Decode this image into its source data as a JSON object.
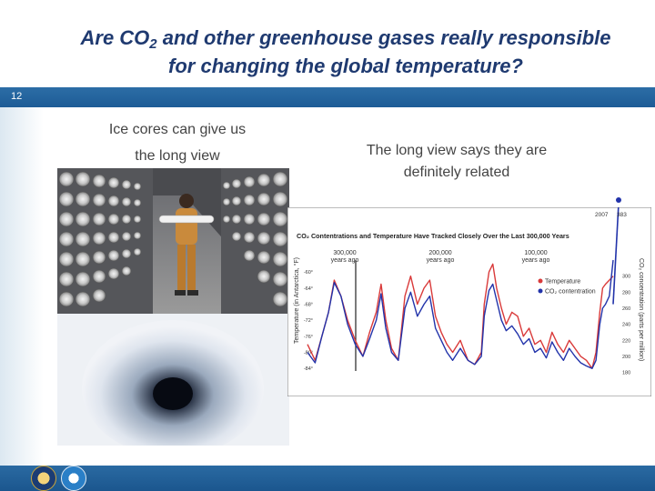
{
  "slide": {
    "title_part1": "Are CO",
    "title_sub": "2",
    "title_part2": " and other greenhouse gases really responsible",
    "title_line2": "for changing the global temperature?",
    "number": "12"
  },
  "left_caption": {
    "line1": "Ice cores can give us",
    "line2": "the long view"
  },
  "right_caption": {
    "line1": "The long view says they are",
    "line2": "definitely related"
  },
  "chart_data": {
    "type": "line",
    "title": "CO₂ Contentrations and Temperature Have Tracked Closely Over the Last 300,000 Years",
    "ylabel_left": "Temperature (in Antarctica, °F)",
    "ylabel_right": "CO₂ concentration (parts per million)",
    "x_markers": [
      {
        "label": "300,000",
        "sublabel": "years ago",
        "x": -300000
      },
      {
        "label": "200,000",
        "sublabel": "years ago",
        "x": -200000
      },
      {
        "label": "100,000",
        "sublabel": "years ago",
        "x": -100000
      }
    ],
    "xlim": [
      -320000,
      0
    ],
    "left_ticks": [
      "-60°",
      "-64°",
      "-68°",
      "-72°",
      "-76°",
      "-80°",
      "-84°"
    ],
    "left_tick_values": [
      -60,
      -64,
      -68,
      -72,
      -76,
      -80,
      -84
    ],
    "left_ylim": [
      -86,
      -57
    ],
    "right_ticks": [
      "300",
      "280",
      "260",
      "240",
      "220",
      "200",
      "180"
    ],
    "right_tick_values": [
      300,
      280,
      260,
      240,
      220,
      200,
      180
    ],
    "right_ylim": [
      175,
      320
    ],
    "legend": [
      {
        "label": "Temperature",
        "color": "#d93a3a"
      },
      {
        "label": "CO₂ contentration",
        "color": "#2233aa"
      }
    ],
    "annotations": {
      "a2014_year": "2014",
      "a2014_value": "397",
      "a2007_year": "2007",
      "a2007_value": "383"
    },
    "series": [
      {
        "name": "Temperature",
        "color": "#d93a3a",
        "x": [
          -320000,
          -312000,
          -305000,
          -298000,
          -292000,
          -285000,
          -278000,
          -270000,
          -262000,
          -255000,
          -248000,
          -243000,
          -238000,
          -232000,
          -225000,
          -218000,
          -212000,
          -205000,
          -198000,
          -192000,
          -186000,
          -180000,
          -174000,
          -168000,
          -160000,
          -152000,
          -145000,
          -138000,
          -135000,
          -130000,
          -126000,
          -122000,
          -117000,
          -112000,
          -106000,
          -100000,
          -94000,
          -88000,
          -82000,
          -76000,
          -70000,
          -64000,
          -58000,
          -52000,
          -46000,
          -40000,
          -34000,
          -28000,
          -22000,
          -18000,
          -14000,
          -11000,
          -8000,
          -4000,
          0
        ],
        "values": [
          -78,
          -82,
          -76,
          -70,
          -62,
          -66,
          -72,
          -77,
          -81,
          -75,
          -70,
          -63,
          -72,
          -79,
          -82,
          -66,
          -61,
          -68,
          -64,
          -62,
          -71,
          -75,
          -78,
          -80,
          -77,
          -82,
          -83,
          -80,
          -68,
          -60,
          -58,
          -64,
          -69,
          -73,
          -70,
          -71,
          -76,
          -74,
          -78,
          -77,
          -80,
          -75,
          -78,
          -80,
          -77,
          -79,
          -81,
          -82,
          -84,
          -80,
          -70,
          -64,
          -63,
          -62,
          -61
        ]
      },
      {
        "name": "CO₂ contentration",
        "color": "#2233aa",
        "x": [
          -320000,
          -312000,
          -305000,
          -298000,
          -292000,
          -285000,
          -278000,
          -270000,
          -262000,
          -255000,
          -248000,
          -243000,
          -238000,
          -232000,
          -225000,
          -218000,
          -212000,
          -205000,
          -198000,
          -192000,
          -186000,
          -180000,
          -174000,
          -168000,
          -160000,
          -152000,
          -145000,
          -138000,
          -135000,
          -130000,
          -126000,
          -122000,
          -117000,
          -112000,
          -106000,
          -100000,
          -94000,
          -88000,
          -82000,
          -76000,
          -70000,
          -64000,
          -58000,
          -52000,
          -46000,
          -40000,
          -34000,
          -28000,
          -22000,
          -18000,
          -14000,
          -11000,
          -8000,
          -4000,
          0
        ],
        "values": [
          205,
          192,
          225,
          255,
          292,
          275,
          240,
          215,
          200,
          222,
          245,
          278,
          235,
          205,
          195,
          260,
          280,
          250,
          265,
          275,
          235,
          220,
          205,
          195,
          210,
          195,
          190,
          200,
          250,
          282,
          290,
          270,
          245,
          232,
          238,
          228,
          215,
          222,
          205,
          210,
          198,
          218,
          205,
          195,
          210,
          200,
          192,
          188,
          185,
          195,
          240,
          260,
          265,
          275,
          397
        ]
      }
    ]
  }
}
